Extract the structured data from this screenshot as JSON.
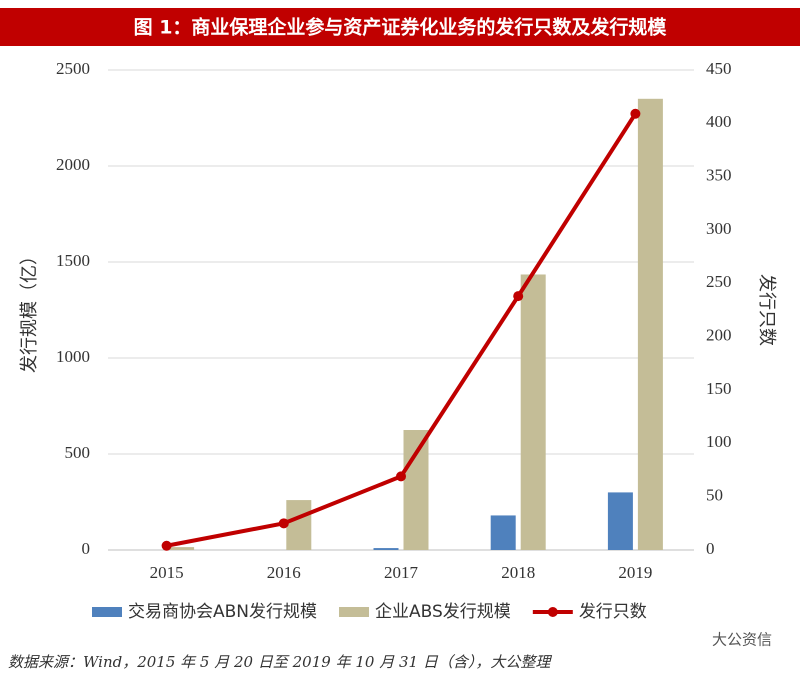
{
  "chart_data": {
    "type": "bar-line",
    "title": "图 1：商业保理企业参与资产证券化业务的发行只数及发行规模",
    "categories": [
      "2015",
      "2016",
      "2017",
      "2018",
      "2019"
    ],
    "series": [
      {
        "name": "交易商协会ABN发行规模",
        "color": "#4f81bd",
        "type": "bar",
        "values": [
          0,
          0,
          10,
          180,
          300
        ]
      },
      {
        "name": "企业ABS发行规模",
        "color": "#c4bd97",
        "type": "bar",
        "values": [
          15,
          260,
          625,
          1435,
          2350
        ]
      },
      {
        "name": "发行只数",
        "color": "#c00000",
        "type": "line",
        "axis": "y2",
        "values": [
          4,
          25,
          69,
          238,
          409
        ]
      }
    ],
    "ylabel": "发行规模（亿）",
    "y2label": "发行只数",
    "ylim": [
      0,
      2500
    ],
    "yticks": [
      0,
      500,
      1000,
      1500,
      2000,
      2500
    ],
    "y2lim": [
      0,
      450
    ],
    "y2ticks": [
      0,
      50,
      100,
      150,
      200,
      250,
      300,
      350,
      400,
      450
    ],
    "grid": true,
    "legend": "bottom",
    "source": "数据来源：Wind，2015 年 5 月 20 日至 2019 年 10 月 31 日（含），大公整理",
    "watermark": "大公资信"
  }
}
